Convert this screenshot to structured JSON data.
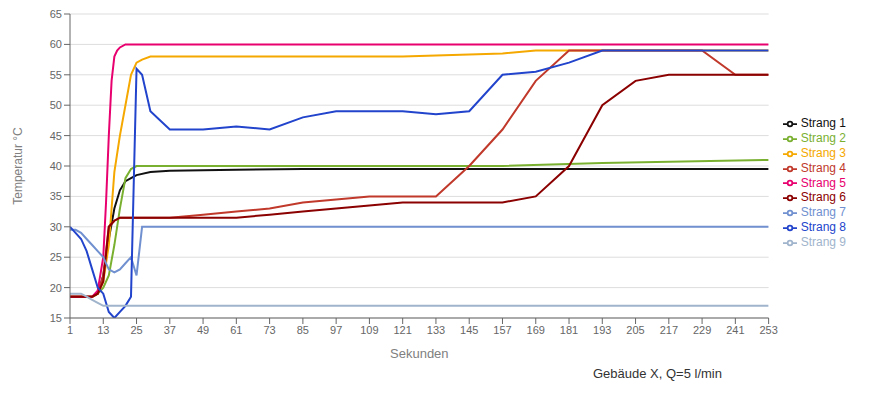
{
  "chart_data": {
    "type": "line",
    "xlabel": "Sekunden",
    "ylabel": "Temperatur °C",
    "annotation": "Gebäude X, Q=5 l/min",
    "xlim": [
      1,
      253
    ],
    "ylim": [
      15,
      65
    ],
    "xticks": [
      1,
      13,
      25,
      37,
      49,
      61,
      73,
      85,
      97,
      109,
      121,
      133,
      145,
      157,
      169,
      181,
      193,
      205,
      217,
      229,
      241,
      253
    ],
    "yticks": [
      15,
      20,
      25,
      30,
      35,
      40,
      45,
      50,
      55,
      60,
      65
    ],
    "grid": true,
    "legend": "right",
    "series": [
      {
        "name": "Strang 1",
        "color": "#111111",
        "x": [
          1,
          5,
          9,
          11,
          13,
          15,
          17,
          19,
          21,
          23,
          25,
          30,
          37,
          49,
          61,
          85,
          121,
          157,
          193,
          253
        ],
        "values": [
          18.5,
          18.5,
          18.5,
          19,
          22,
          28,
          33,
          36,
          37.5,
          38,
          38.5,
          39,
          39.2,
          39.3,
          39.4,
          39.5,
          39.5,
          39.5,
          39.5,
          39.5
        ]
      },
      {
        "name": "Strang 2",
        "color": "#7ab030",
        "x": [
          1,
          5,
          9,
          11,
          13,
          15,
          17,
          19,
          21,
          23,
          25,
          27,
          30,
          37,
          49,
          85,
          121,
          157,
          193,
          253
        ],
        "values": [
          18.5,
          18.5,
          18.5,
          19,
          20,
          22,
          27,
          33,
          38,
          39.5,
          40,
          40,
          40,
          40,
          40,
          40,
          40,
          40,
          40.5,
          41
        ]
      },
      {
        "name": "Strang 3",
        "color": "#f5a800",
        "x": [
          1,
          5,
          9,
          11,
          13,
          15,
          17,
          19,
          21,
          23,
          25,
          27,
          30,
          37,
          49,
          85,
          121,
          157,
          169,
          181,
          193,
          253
        ],
        "values": [
          18.5,
          18.5,
          18.5,
          19,
          21,
          27,
          39,
          45,
          50,
          55,
          57,
          57.5,
          58,
          58,
          58,
          58,
          58,
          58.5,
          59,
          59,
          59,
          59
        ]
      },
      {
        "name": "Strang 4",
        "color": "#c0392b",
        "x": [
          1,
          5,
          9,
          11,
          13,
          15,
          17,
          19,
          21,
          25,
          37,
          49,
          61,
          73,
          85,
          97,
          109,
          121,
          133,
          145,
          157,
          169,
          181,
          193,
          205,
          217,
          229,
          241,
          253
        ],
        "values": [
          18.5,
          18.5,
          18.5,
          19,
          22,
          30,
          31,
          31.5,
          31.5,
          31.5,
          31.5,
          32,
          32.5,
          33,
          34,
          34.5,
          35,
          35,
          35,
          40,
          46,
          54,
          59,
          59,
          59,
          59,
          59,
          55,
          55
        ]
      },
      {
        "name": "Strang 5",
        "color": "#e8006f",
        "x": [
          1,
          5,
          9,
          11,
          13,
          14,
          15,
          16,
          17,
          18,
          19,
          21,
          23,
          25,
          30,
          37,
          49,
          85,
          121,
          157,
          193,
          253
        ],
        "values": [
          18.5,
          18.5,
          18.5,
          19.5,
          25,
          34,
          45,
          54,
          58,
          59,
          59.5,
          60,
          60,
          60,
          60,
          60,
          60,
          60,
          60,
          60,
          60,
          60
        ]
      },
      {
        "name": "Strang 6",
        "color": "#8b0000",
        "x": [
          1,
          5,
          9,
          11,
          13,
          15,
          17,
          19,
          21,
          25,
          37,
          49,
          61,
          73,
          85,
          97,
          109,
          121,
          133,
          145,
          157,
          169,
          181,
          193,
          205,
          217,
          229,
          241,
          253
        ],
        "values": [
          18.5,
          18.5,
          18.5,
          19,
          21,
          30,
          31,
          31.5,
          31.5,
          31.5,
          31.5,
          31.5,
          31.5,
          32,
          32.5,
          33,
          33.5,
          34,
          34,
          34,
          34,
          35,
          40,
          50,
          54,
          55,
          55,
          55,
          55
        ]
      },
      {
        "name": "Strang 7",
        "color": "#7090d0",
        "x": [
          1,
          3,
          5,
          7,
          9,
          11,
          13,
          15,
          17,
          19,
          21,
          23,
          25,
          27,
          30,
          37,
          49,
          85,
          121,
          157,
          193,
          253
        ],
        "values": [
          29.5,
          29.5,
          29,
          28,
          27,
          26,
          25,
          23,
          22.5,
          23,
          24,
          25,
          22,
          30,
          30,
          30,
          30,
          30,
          30,
          30,
          30,
          30
        ]
      },
      {
        "name": "Strang 8",
        "color": "#2244cc",
        "x": [
          1,
          3,
          5,
          7,
          9,
          11,
          13,
          15,
          17,
          19,
          21,
          23,
          25,
          27,
          30,
          37,
          49,
          61,
          73,
          85,
          97,
          109,
          121,
          133,
          145,
          157,
          169,
          181,
          193,
          205,
          217,
          229,
          241,
          253
        ],
        "values": [
          30,
          29,
          28,
          26,
          23,
          20,
          19,
          16,
          15,
          16,
          17,
          18.5,
          56,
          55,
          49,
          46,
          46,
          46.5,
          46,
          48,
          49,
          49,
          49,
          48.5,
          49,
          55,
          55.5,
          57,
          59,
          59,
          59,
          59,
          59,
          59
        ]
      },
      {
        "name": "Strang 9",
        "color": "#a0b4cc",
        "x": [
          1,
          3,
          5,
          7,
          9,
          11,
          13,
          15,
          17,
          19,
          21,
          23,
          25,
          27,
          30,
          37,
          49,
          85,
          121,
          157,
          193,
          253
        ],
        "values": [
          19,
          19,
          19,
          18.5,
          18,
          17.5,
          17,
          17,
          17,
          17,
          17,
          17,
          17,
          17,
          17,
          17,
          17,
          17,
          17,
          17,
          17,
          17
        ]
      }
    ]
  }
}
